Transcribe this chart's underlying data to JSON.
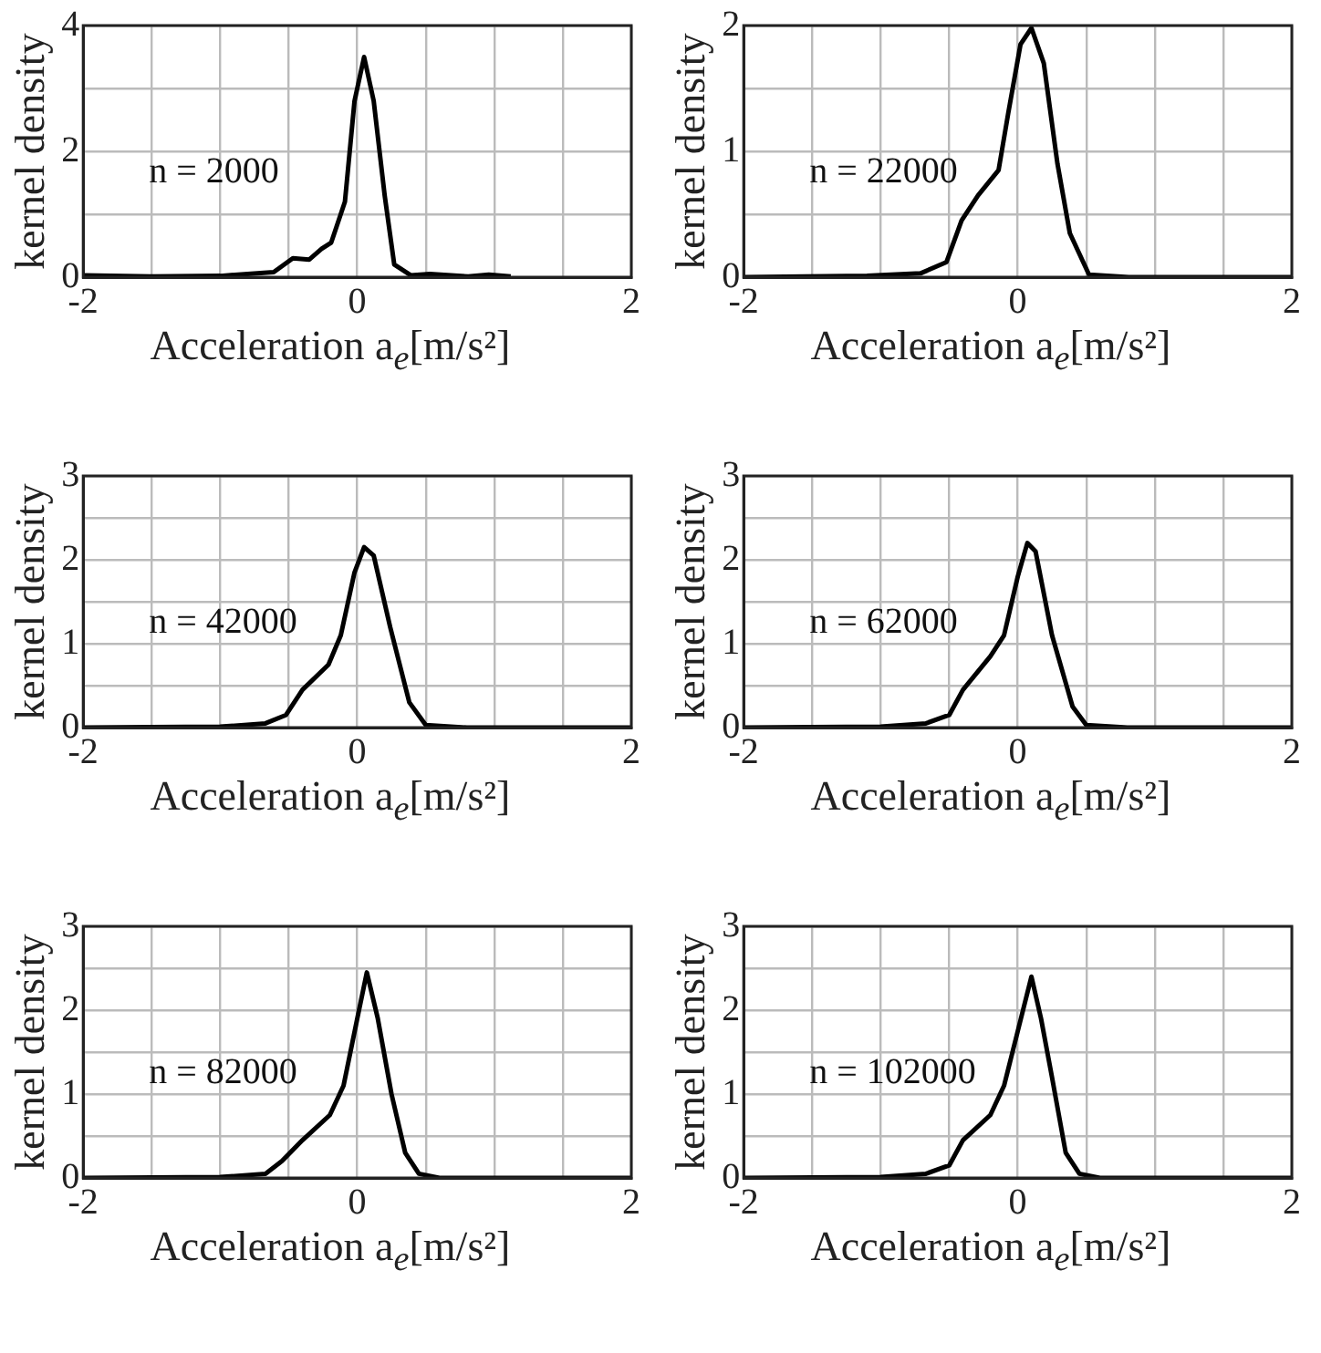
{
  "chart_data": [
    {
      "type": "line",
      "ylabel": "kernel density",
      "xlabel": "Acceleration a$_{e}$[m/s²]",
      "annotations": [
        "n = 2000"
      ],
      "color": "#000000",
      "grid": true,
      "line_style": "solid",
      "marker": "none",
      "xlim": [
        -2,
        2
      ],
      "ylim": [
        0,
        4
      ],
      "xticks": [
        -2,
        {
          "value": -1.5,
          "label": null
        },
        {
          "value": -1,
          "label": null
        },
        {
          "value": -0.5,
          "label": null
        },
        0,
        {
          "value": 0.5,
          "label": null
        },
        {
          "value": 1,
          "label": null
        },
        {
          "value": 1.5,
          "label": null
        },
        2
      ],
      "yticks": [
        0,
        {
          "value": 1,
          "label": null
        },
        2,
        {
          "value": 3,
          "label": null
        },
        4
      ],
      "x": [
        -2,
        -1.5,
        -1,
        -0.8,
        -0.61,
        -0.47,
        -0.35,
        -0.26,
        -0.19,
        -0.09,
        -0.02,
        0.05,
        0.12,
        0.2,
        0.27,
        0.39,
        0.53,
        0.81,
        0.96,
        1.12
      ],
      "values": [
        0.03,
        0.01,
        0.02,
        0.05,
        0.08,
        0.3,
        0.28,
        0.45,
        0.55,
        1.2,
        2.8,
        3.5,
        2.8,
        1.3,
        0.2,
        0.03,
        0.05,
        0.01,
        0.04,
        0.01
      ]
    },
    {
      "type": "line",
      "ylabel": "kernel density",
      "xlabel": "Acceleration a$_{e}$[m/s²]",
      "annotations": [
        "n = 22000"
      ],
      "color": "#000000",
      "grid": true,
      "line_style": "solid",
      "marker": "none",
      "xlim": [
        -2,
        2
      ],
      "ylim": [
        0,
        2
      ],
      "xticks": [
        -2,
        {
          "value": -1.5,
          "label": null
        },
        {
          "value": -1,
          "label": null
        },
        {
          "value": -0.5,
          "label": null
        },
        0,
        {
          "value": 0.5,
          "label": null
        },
        {
          "value": 1,
          "label": null
        },
        {
          "value": 1.5,
          "label": null
        },
        2
      ],
      "yticks": [
        0,
        {
          "value": 0.5,
          "label": null
        },
        1,
        {
          "value": 1.5,
          "label": null
        },
        2
      ],
      "x": [
        -2,
        -1.1,
        -0.71,
        -0.52,
        -0.41,
        -0.29,
        -0.14,
        -0.07,
        0.02,
        0.1,
        0.19,
        0.29,
        0.38,
        0.52,
        0.81,
        2
      ],
      "values": [
        0,
        0.01,
        0.03,
        0.12,
        0.45,
        0.65,
        0.85,
        1.3,
        1.85,
        1.98,
        1.7,
        0.9,
        0.35,
        0.02,
        0,
        0
      ]
    },
    {
      "type": "line",
      "ylabel": "kernel density",
      "xlabel": "Acceleration a$_{e}$[m/s²]",
      "annotations": [
        "n = 42000"
      ],
      "color": "#000000",
      "grid": true,
      "line_style": "solid",
      "marker": "none",
      "xlim": [
        -2,
        2
      ],
      "ylim": [
        0,
        3
      ],
      "xticks": [
        -2,
        {
          "value": -1.5,
          "label": null
        },
        {
          "value": -1,
          "label": null
        },
        {
          "value": -0.5,
          "label": null
        },
        0,
        {
          "value": 0.5,
          "label": null
        },
        {
          "value": 1,
          "label": null
        },
        {
          "value": 1.5,
          "label": null
        },
        2
      ],
      "yticks": [
        0,
        {
          "value": 0.5,
          "label": null
        },
        1,
        {
          "value": 1.5,
          "label": null
        },
        2,
        {
          "value": 2.5,
          "label": null
        },
        3
      ],
      "x": [
        -2,
        -1,
        -0.67,
        -0.52,
        -0.4,
        -0.21,
        -0.12,
        -0.02,
        0.05,
        0.12,
        0.24,
        0.38,
        0.5,
        0.8,
        2
      ],
      "values": [
        0,
        0.01,
        0.05,
        0.15,
        0.45,
        0.75,
        1.1,
        1.85,
        2.15,
        2.05,
        1.2,
        0.3,
        0.03,
        0,
        0
      ]
    },
    {
      "type": "line",
      "ylabel": "kernel density",
      "xlabel": "Acceleration a$_{e}$[m/s²]",
      "annotations": [
        "n = 62000"
      ],
      "color": "#000000",
      "grid": true,
      "line_style": "solid",
      "marker": "none",
      "xlim": [
        -2,
        2
      ],
      "ylim": [
        0,
        3
      ],
      "xticks": [
        -2,
        {
          "value": -1.5,
          "label": null
        },
        {
          "value": -1,
          "label": null
        },
        {
          "value": -0.5,
          "label": null
        },
        0,
        {
          "value": 0.5,
          "label": null
        },
        {
          "value": 1,
          "label": null
        },
        {
          "value": 1.5,
          "label": null
        },
        2
      ],
      "yticks": [
        0,
        {
          "value": 0.5,
          "label": null
        },
        1,
        {
          "value": 1.5,
          "label": null
        },
        2,
        {
          "value": 2.5,
          "label": null
        },
        3
      ],
      "x": [
        -2,
        -1,
        -0.67,
        -0.5,
        -0.4,
        -0.2,
        -0.1,
        0,
        0.07,
        0.13,
        0.25,
        0.4,
        0.5,
        0.8,
        2
      ],
      "values": [
        0,
        0.01,
        0.05,
        0.15,
        0.45,
        0.85,
        1.1,
        1.8,
        2.2,
        2.1,
        1.1,
        0.25,
        0.03,
        0,
        0
      ]
    },
    {
      "type": "line",
      "ylabel": "kernel density",
      "xlabel": "Acceleration a$_{e}$[m/s²]",
      "annotations": [
        "n = 82000"
      ],
      "color": "#000000",
      "grid": true,
      "line_style": "solid",
      "marker": "none",
      "xlim": [
        -2,
        2
      ],
      "ylim": [
        0,
        3
      ],
      "xticks": [
        -2,
        {
          "value": -1.5,
          "label": null
        },
        {
          "value": -1,
          "label": null
        },
        {
          "value": -0.5,
          "label": null
        },
        0,
        {
          "value": 0.5,
          "label": null
        },
        {
          "value": 1,
          "label": null
        },
        {
          "value": 1.5,
          "label": null
        },
        2
      ],
      "yticks": [
        0,
        {
          "value": 0.5,
          "label": null
        },
        1,
        {
          "value": 1.5,
          "label": null
        },
        2,
        {
          "value": 2.5,
          "label": null
        },
        3
      ],
      "x": [
        -2,
        -1,
        -0.67,
        -0.55,
        -0.4,
        -0.2,
        -0.1,
        0,
        0.07,
        0.15,
        0.25,
        0.35,
        0.45,
        0.6,
        2
      ],
      "values": [
        0,
        0.01,
        0.05,
        0.2,
        0.45,
        0.75,
        1.1,
        1.9,
        2.45,
        1.9,
        1,
        0.3,
        0.05,
        0,
        0
      ]
    },
    {
      "type": "line",
      "ylabel": "kernel density",
      "xlabel": "Acceleration a$_{e}$[m/s²]",
      "annotations": [
        "n = 102000"
      ],
      "color": "#000000",
      "grid": true,
      "line_style": "solid",
      "marker": "none",
      "xlim": [
        -2,
        2
      ],
      "ylim": [
        0,
        3
      ],
      "xticks": [
        -2,
        {
          "value": -1.5,
          "label": null
        },
        {
          "value": -1,
          "label": null
        },
        {
          "value": -0.5,
          "label": null
        },
        0,
        {
          "value": 0.5,
          "label": null
        },
        {
          "value": 1,
          "label": null
        },
        {
          "value": 1.5,
          "label": null
        },
        2
      ],
      "yticks": [
        0,
        {
          "value": 0.5,
          "label": null
        },
        1,
        {
          "value": 1.5,
          "label": null
        },
        2,
        {
          "value": 2.5,
          "label": null
        },
        3
      ],
      "x": [
        -2,
        -1,
        -0.67,
        -0.5,
        -0.4,
        -0.2,
        -0.1,
        0,
        0.1,
        0.17,
        0.25,
        0.35,
        0.45,
        0.6,
        2
      ],
      "values": [
        0,
        0.01,
        0.05,
        0.15,
        0.45,
        0.75,
        1.1,
        1.75,
        2.4,
        1.9,
        1.2,
        0.3,
        0.05,
        0,
        0
      ]
    }
  ]
}
